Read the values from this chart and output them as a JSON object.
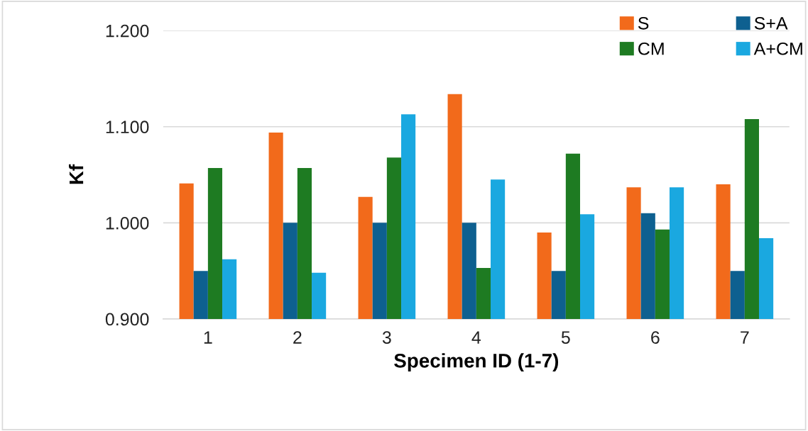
{
  "chart_data": {
    "type": "bar",
    "xlabel": "Specimen ID (1-7)",
    "ylabel": "Kf",
    "categories": [
      "1",
      "2",
      "3",
      "4",
      "5",
      "6",
      "7"
    ],
    "series": [
      {
        "name": "S",
        "color": "#f26a1b",
        "values": [
          1.041,
          1.094,
          1.027,
          1.134,
          0.99,
          1.037,
          1.04
        ]
      },
      {
        "name": "S+A",
        "color": "#0e6090",
        "values": [
          0.95,
          1.0,
          1.0,
          1.0,
          0.95,
          1.01,
          0.95
        ]
      },
      {
        "name": "CM",
        "color": "#1e7b22",
        "values": [
          1.057,
          1.057,
          1.068,
          0.953,
          1.072,
          0.993,
          1.108
        ]
      },
      {
        "name": "A+CM",
        "color": "#1aa8e0",
        "values": [
          0.962,
          0.948,
          1.113,
          1.045,
          1.009,
          1.037,
          0.984
        ]
      }
    ],
    "ylim": [
      0.9,
      1.2
    ],
    "yticks": [
      {
        "value": 0.9,
        "label": "0.900"
      },
      {
        "value": 1.0,
        "label": "1.000"
      },
      {
        "value": 1.1,
        "label": "1.100"
      },
      {
        "value": 1.2,
        "label": "1.200"
      }
    ],
    "grid": "y",
    "legend": "top right"
  }
}
